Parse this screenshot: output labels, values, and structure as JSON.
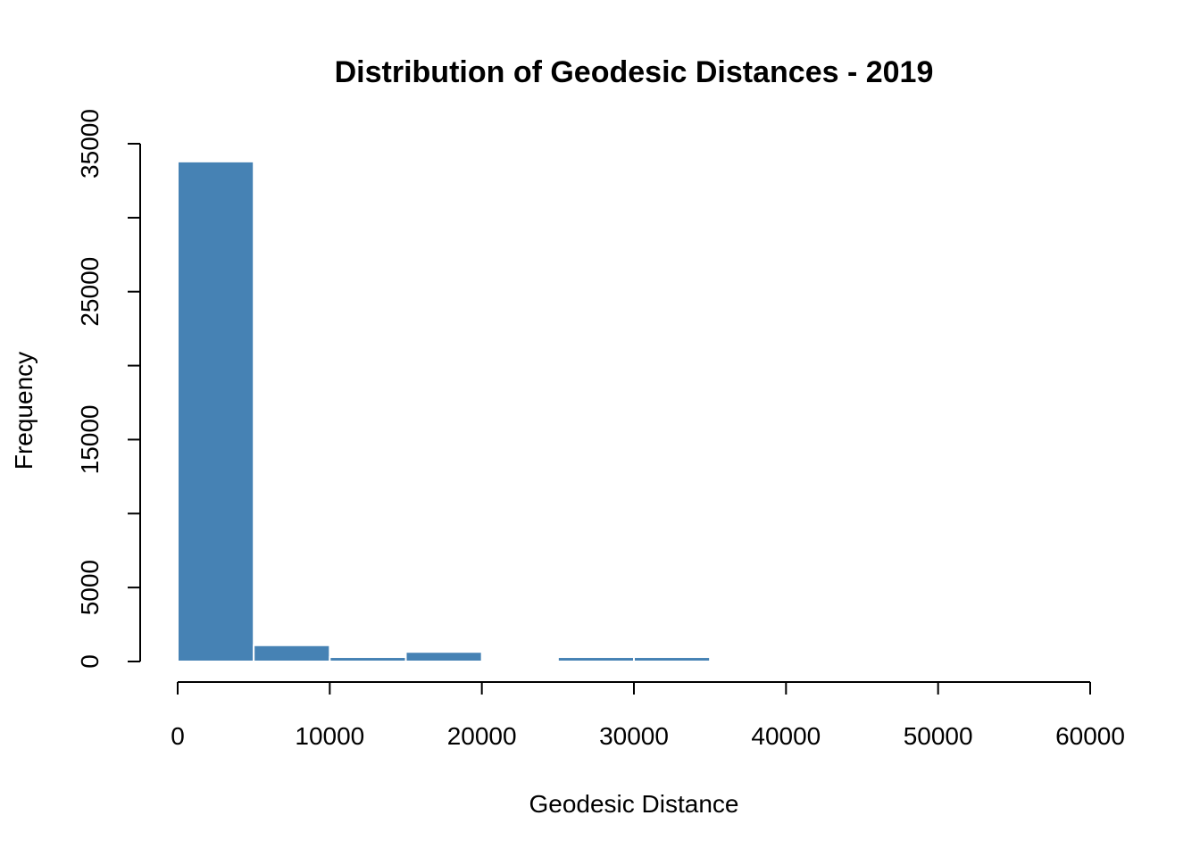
{
  "chart_data": {
    "type": "bar",
    "title": "Distribution of Geodesic Distances - 2019",
    "xlabel": "Geodesic Distance",
    "ylabel": "Frequency",
    "bin_width": 5000,
    "bins": [
      {
        "start": 0,
        "end": 5000,
        "count": 33800
      },
      {
        "start": 5000,
        "end": 10000,
        "count": 1100
      },
      {
        "start": 10000,
        "end": 15000,
        "count": 300
      },
      {
        "start": 15000,
        "end": 20000,
        "count": 650
      },
      {
        "start": 20000,
        "end": 25000,
        "count": 0
      },
      {
        "start": 25000,
        "end": 30000,
        "count": 300
      },
      {
        "start": 30000,
        "end": 35000,
        "count": 300
      }
    ],
    "xlim": [
      0,
      60000
    ],
    "ylim": [
      0,
      35000
    ],
    "x_ticks": [
      0,
      10000,
      20000,
      30000,
      40000,
      50000,
      60000
    ],
    "x_tick_labels": [
      "0",
      "10000",
      "20000",
      "30000",
      "40000",
      "50000",
      "60000"
    ],
    "y_ticks": [
      0,
      5000,
      10000,
      15000,
      20000,
      25000,
      30000,
      35000
    ],
    "y_tick_labels": [
      "0",
      "5000",
      "15000",
      "25000",
      "35000"
    ],
    "y_labeled_ticks": [
      0,
      5000,
      15000,
      25000,
      35000
    ],
    "bar_color": "#4682B4",
    "grid": false
  }
}
